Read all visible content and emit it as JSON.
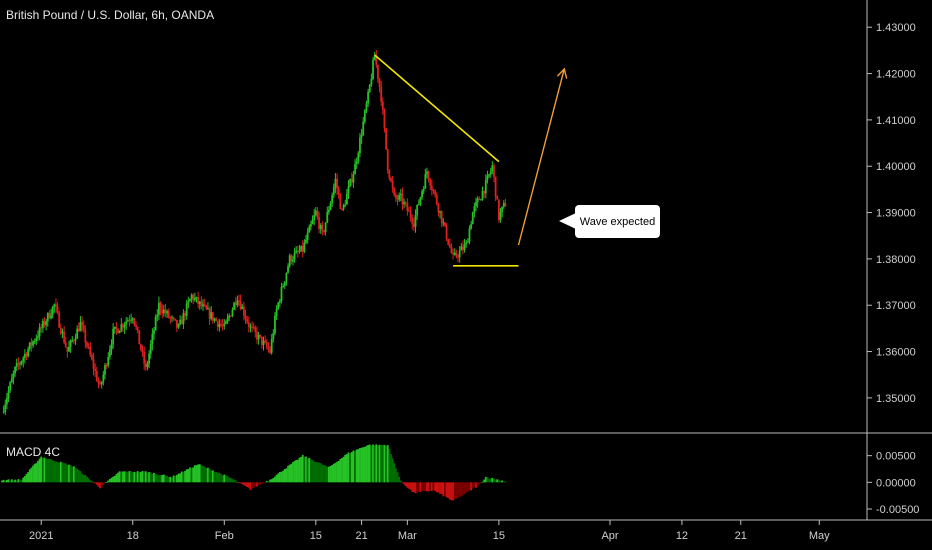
{
  "header": {
    "title": "British Pound / U.S. Dollar, 6h, OANDA"
  },
  "indicator": {
    "label": "MACD 4C"
  },
  "annotation": {
    "text": "Wave expected"
  },
  "colors": {
    "background": "#000000",
    "up_candle": "#26c226",
    "down_candle": "#e02020",
    "trendline": "#f2e600",
    "arrow": "#f0a030",
    "grid_divider": "#bdbdbd",
    "axis_text": "#cfcfcf",
    "macd_pos_bright": "#26c226",
    "macd_pos_dark": "#006e00",
    "macd_neg_bright": "#cc1010",
    "macd_neg_dark": "#7a0000"
  },
  "chart_data": {
    "type": "candlestick",
    "title": "British Pound / U.S. Dollar, 6h, OANDA",
    "ylim": [
      1.3435,
      1.4348
    ],
    "y_ticks": [
      "1.43000",
      "1.42000",
      "1.41000",
      "1.40000",
      "1.39000",
      "1.38000",
      "1.37000",
      "1.36000",
      "1.35000"
    ],
    "y_tick_values": [
      1.43,
      1.42,
      1.41,
      1.4,
      1.39,
      1.38,
      1.37,
      1.36,
      1.35
    ],
    "x_ticks": [
      "2021",
      "18",
      "Feb",
      "15",
      "Mar",
      "15",
      "Apr",
      "12",
      "May"
    ],
    "x_ticks_minor": [
      "21",
      "21"
    ],
    "x_tick_dates": [
      "2021-01-04",
      "2021-01-18",
      "2021-02-01",
      "2021-02-15",
      "2021-03-01",
      "2021-03-15",
      "2021-04-01",
      "2021-04-12",
      "2021-05-03"
    ],
    "x_minor_tick_dates": [
      "2021-02-22",
      "2021-04-21"
    ],
    "date_range": [
      "2020-12-29",
      "2021-05-10"
    ],
    "anchors": [
      [
        "2020-12-29",
        1.347
      ],
      [
        "2020-12-31",
        1.356
      ],
      [
        "2021-01-04",
        1.365
      ],
      [
        "2021-01-06",
        1.37
      ],
      [
        "2021-01-08",
        1.36
      ],
      [
        "2021-01-10",
        1.366
      ],
      [
        "2021-01-13",
        1.352
      ],
      [
        "2021-01-15",
        1.364
      ],
      [
        "2021-01-18",
        1.368
      ],
      [
        "2021-01-20",
        1.356
      ],
      [
        "2021-01-22",
        1.37
      ],
      [
        "2021-01-25",
        1.365
      ],
      [
        "2021-01-27",
        1.372
      ],
      [
        "2021-01-29",
        1.369
      ],
      [
        "2021-02-01",
        1.365
      ],
      [
        "2021-02-03",
        1.372
      ],
      [
        "2021-02-05",
        1.365
      ],
      [
        "2021-02-08",
        1.36
      ],
      [
        "2021-02-09",
        1.369
      ],
      [
        "2021-02-11",
        1.38
      ],
      [
        "2021-02-13",
        1.382
      ],
      [
        "2021-02-15",
        1.39
      ],
      [
        "2021-02-16",
        1.385
      ],
      [
        "2021-02-18",
        1.397
      ],
      [
        "2021-02-19",
        1.39
      ],
      [
        "2021-02-21",
        1.4
      ],
      [
        "2021-02-23",
        1.415
      ],
      [
        "2021-02-24",
        1.424
      ],
      [
        "2021-02-25",
        1.415
      ],
      [
        "2021-02-26",
        1.4
      ],
      [
        "2021-02-27",
        1.393
      ],
      [
        "2021-02-28",
        1.393
      ],
      [
        "2021-03-02",
        1.388
      ],
      [
        "2021-03-04",
        1.399
      ],
      [
        "2021-03-06",
        1.39
      ],
      [
        "2021-03-08",
        1.38
      ],
      [
        "2021-03-10",
        1.383
      ],
      [
        "2021-03-11",
        1.39
      ],
      [
        "2021-03-13",
        1.396
      ],
      [
        "2021-03-14",
        1.4
      ],
      [
        "2021-03-15",
        1.389
      ],
      [
        "2021-03-16",
        1.392
      ]
    ],
    "macd_anchors": [
      [
        "2020-12-29",
        0.0004
      ],
      [
        "2021-01-01",
        0.0005
      ],
      [
        "2021-01-04",
        0.0048
      ],
      [
        "2021-01-09",
        0.003
      ],
      [
        "2021-01-13",
        -0.001
      ],
      [
        "2021-01-16",
        0.002
      ],
      [
        "2021-01-20",
        0.002
      ],
      [
        "2021-01-24",
        0.001
      ],
      [
        "2021-01-28",
        0.0034
      ],
      [
        "2021-02-02",
        0.0008
      ],
      [
        "2021-02-05",
        -0.0013
      ],
      [
        "2021-02-08",
        0.0005
      ],
      [
        "2021-02-13",
        0.005
      ],
      [
        "2021-02-17",
        0.0028
      ],
      [
        "2021-02-20",
        0.0055
      ],
      [
        "2021-02-23",
        0.007
      ],
      [
        "2021-02-26",
        0.007
      ],
      [
        "2021-02-28",
        0.0002
      ],
      [
        "2021-03-02",
        -0.002
      ],
      [
        "2021-03-05",
        -0.0015
      ],
      [
        "2021-03-08",
        -0.0035
      ],
      [
        "2021-03-12",
        -0.0005
      ],
      [
        "2021-03-13",
        0.001
      ],
      [
        "2021-03-16",
        0.0002
      ]
    ],
    "macd_ylim": [
      -0.0065,
      0.0085
    ],
    "macd_ticks": [
      "0.00500",
      "0.00000",
      "-0.00500"
    ],
    "macd_tick_values": [
      0.005,
      0.0,
      -0.005
    ],
    "drawings": {
      "upper_trendline": [
        [
          "2021-02-24",
          1.424
        ],
        [
          "2021-03-15",
          1.401
        ]
      ],
      "support_line": [
        [
          "2021-03-08",
          1.3785
        ],
        [
          "2021-03-18",
          1.3785
        ]
      ],
      "projection_arrow": [
        [
          "2021-03-18",
          1.383
        ],
        [
          "2021-03-25",
          1.421
        ]
      ],
      "callout_point": [
        "2021-03-23",
        1.389
      ]
    }
  }
}
